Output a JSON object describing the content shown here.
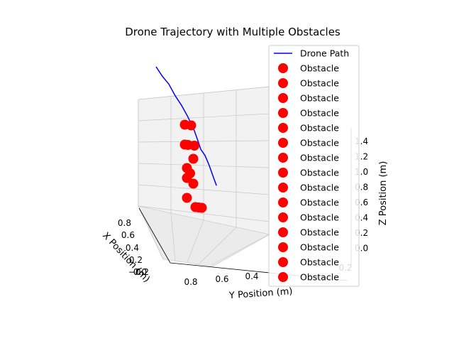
{
  "chart_data": {
    "type": "scatter",
    "title": "Drone Trajectory with Multiple Obstacles",
    "xlabel": "X Position (m)",
    "ylabel": "Y Position (m)",
    "zlabel": "Z Position (m)",
    "x_ticks": [
      "0.8",
      "0.6",
      "0.4",
      "0.2",
      "0.0",
      "−0.2"
    ],
    "y_ticks": [
      "0.8",
      "0.6",
      "0.4",
      "0.2"
    ],
    "z_ticks": [
      "1.4",
      "1.2",
      "1.0",
      "0.8",
      "0.6",
      "0.4",
      "0.2",
      "0.0"
    ],
    "grid": true,
    "legend_position": "top-right",
    "colors": {
      "path": "#0000ff",
      "obstacle": "#ff0000"
    },
    "series": [
      {
        "name": "Drone Path",
        "kind": "line",
        "points": [
          {
            "x": 0.0,
            "y": 1.0,
            "z": 1.4
          },
          {
            "x": 0.05,
            "y": 0.92,
            "z": 1.3
          },
          {
            "x": 0.1,
            "y": 0.84,
            "z": 1.22
          },
          {
            "x": 0.15,
            "y": 0.76,
            "z": 1.1
          },
          {
            "x": 0.2,
            "y": 0.68,
            "z": 1.0
          },
          {
            "x": 0.25,
            "y": 0.6,
            "z": 0.88
          },
          {
            "x": 0.3,
            "y": 0.52,
            "z": 0.74
          },
          {
            "x": 0.35,
            "y": 0.46,
            "z": 0.62
          },
          {
            "x": 0.4,
            "y": 0.42,
            "z": 0.56
          },
          {
            "x": 0.45,
            "y": 0.36,
            "z": 0.5
          },
          {
            "x": 0.5,
            "y": 0.3,
            "z": 0.4
          },
          {
            "x": 0.55,
            "y": 0.24,
            "z": 0.28
          },
          {
            "x": 0.58,
            "y": 0.2,
            "z": 0.2
          }
        ]
      },
      {
        "name": "Obstacle",
        "kind": "scatter",
        "points": [
          {
            "x": 0.45,
            "y": 0.55,
            "z": 0.85
          },
          {
            "x": 0.55,
            "y": 0.45,
            "z": 0.85
          },
          {
            "x": 0.45,
            "y": 0.55,
            "z": 0.65
          },
          {
            "x": 0.5,
            "y": 0.5,
            "z": 0.65
          },
          {
            "x": 0.6,
            "y": 0.4,
            "z": 0.65
          },
          {
            "x": 0.5,
            "y": 0.45,
            "z": 0.5
          },
          {
            "x": 0.4,
            "y": 0.55,
            "z": 0.4
          },
          {
            "x": 0.45,
            "y": 0.5,
            "z": 0.35
          },
          {
            "x": 0.4,
            "y": 0.55,
            "z": 0.3
          },
          {
            "x": 0.5,
            "y": 0.45,
            "z": 0.25
          },
          {
            "x": 0.4,
            "y": 0.55,
            "z": 0.1
          },
          {
            "x": 0.45,
            "y": 0.45,
            "z": 0.0
          },
          {
            "x": 0.5,
            "y": 0.4,
            "z": 0.0
          },
          {
            "x": 0.55,
            "y": 0.35,
            "z": 0.0
          }
        ]
      }
    ],
    "legend": [
      "Drone Path",
      "Obstacle",
      "Obstacle",
      "Obstacle",
      "Obstacle",
      "Obstacle",
      "Obstacle",
      "Obstacle",
      "Obstacle",
      "Obstacle",
      "Obstacle",
      "Obstacle",
      "Obstacle",
      "Obstacle",
      "Obstacle",
      "Obstacle"
    ]
  }
}
